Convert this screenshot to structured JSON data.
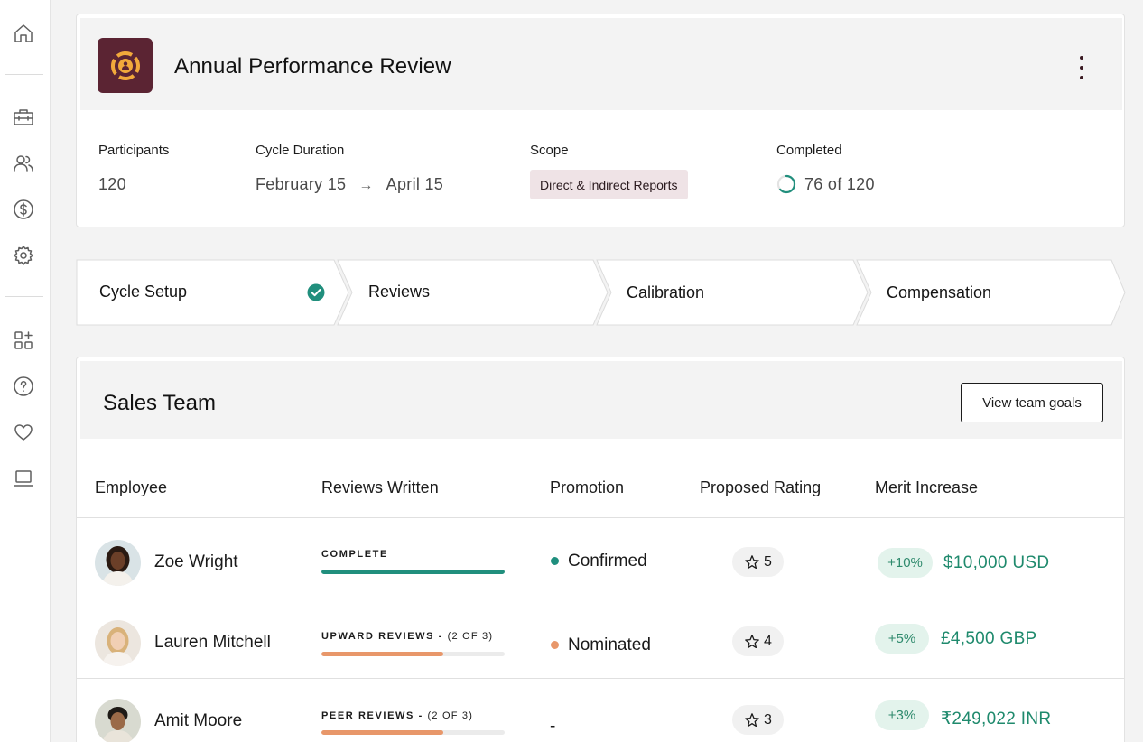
{
  "sidebar": {
    "icons": [
      "home-icon",
      "briefcase-icon",
      "people-icon",
      "dollar-icon",
      "gear-icon",
      "apps-icon",
      "help-icon",
      "heart-icon",
      "laptop-icon"
    ]
  },
  "review": {
    "title": "Annual Performance Review",
    "participants_label": "Participants",
    "participants_value": "120",
    "duration_label": "Cycle Duration",
    "duration_start": "February 15",
    "duration_arrow": "→",
    "duration_end": "April 15",
    "scope_label": "Scope",
    "scope_value": "Direct & Indirect Reports",
    "completed_label": "Completed",
    "completed_value": "76 of 120",
    "completed_fraction": 0.633
  },
  "stepper": {
    "steps": [
      {
        "label": "Cycle Setup",
        "done": true
      },
      {
        "label": "Reviews",
        "done": false
      },
      {
        "label": "Calibration",
        "done": false
      },
      {
        "label": "Compensation",
        "done": false
      }
    ]
  },
  "team": {
    "title": "Sales Team",
    "goals_button": "View team goals",
    "columns": [
      "Employee",
      "Reviews Written",
      "Promotion",
      "Proposed Rating",
      "Merit Increase"
    ],
    "rows": [
      {
        "name": "Zoe Wright",
        "review_status": "COMPLETE",
        "review_sub": "",
        "review_progress": 1.0,
        "bar_color": "#218f7d",
        "promotion": "Confirmed",
        "promo_color": "#1f8f7e",
        "rating": "5",
        "merit_pct": "+10%",
        "merit_amount": "$10,000 USD"
      },
      {
        "name": "Lauren Mitchell",
        "review_status": "UPWARD REVIEWS - ",
        "review_sub": "(2 OF 3)",
        "review_progress": 0.667,
        "bar_color": "#e8976a",
        "promotion": "Nominated",
        "promo_color": "#e8976a",
        "rating": "4",
        "merit_pct": "+5%",
        "merit_amount": "£4,500 GBP"
      },
      {
        "name": "Amit Moore",
        "review_status": "PEER REVIEWS - ",
        "review_sub": "(2 OF 3)",
        "review_progress": 0.667,
        "bar_color": "#e8976a",
        "promotion": "-",
        "promo_color": "",
        "rating": "3",
        "merit_pct": "+3%",
        "merit_amount": "₹249,022 INR"
      }
    ]
  },
  "colors": {
    "brand": "#5b2433",
    "accent_teal": "#1f8f7e",
    "accent_orange": "#e8976a",
    "scope_pill": "#efe3e6",
    "merit_pill": "#e3f3ec"
  }
}
